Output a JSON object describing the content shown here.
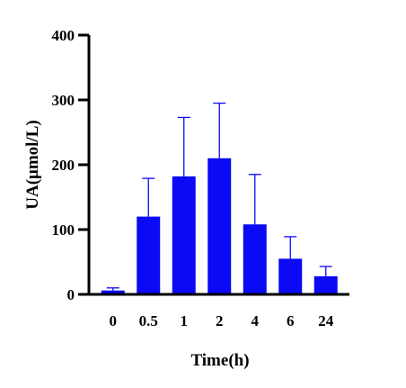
{
  "chart_data": {
    "type": "bar",
    "title": "",
    "xlabel": "Time(h)",
    "ylabel": "UA(μmol/L)",
    "categories": [
      "0",
      "0.5",
      "1",
      "2",
      "4",
      "6",
      "24"
    ],
    "values": [
      6,
      120,
      182,
      210,
      108,
      55,
      28
    ],
    "error_upper": [
      4,
      59,
      91,
      85,
      77,
      34,
      15
    ],
    "ylim": [
      0,
      400
    ],
    "yticks": [
      0,
      100,
      200,
      300,
      400
    ],
    "grid": false,
    "legend": "none",
    "bar_color": "#0a0af5",
    "error_color": "#0a0af5"
  }
}
